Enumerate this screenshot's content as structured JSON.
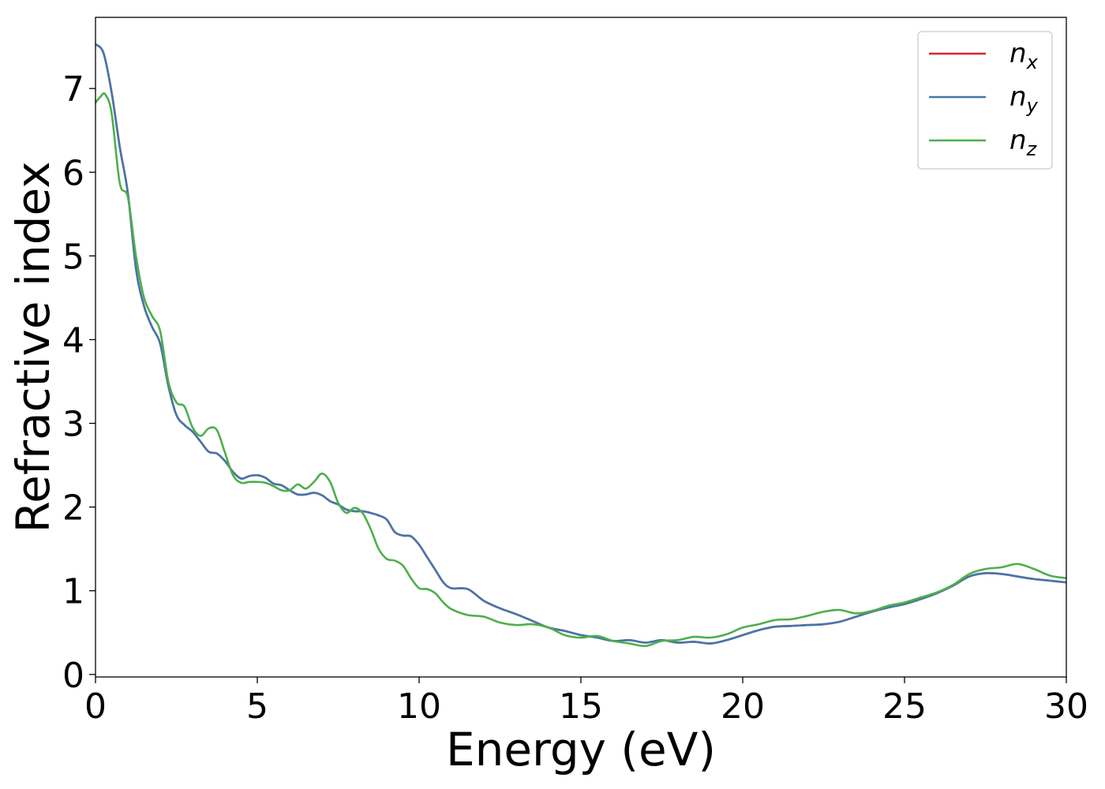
{
  "chart_data": {
    "type": "line",
    "xlabel": "Energy (eV)",
    "ylabel": "Refractive index",
    "xlim": [
      0,
      30
    ],
    "ylim": [
      -0.03,
      7.85
    ],
    "xticks": [
      0,
      5,
      10,
      15,
      20,
      25,
      30
    ],
    "xtick_labels": [
      "0",
      "5",
      "10",
      "15",
      "20",
      "25",
      "30"
    ],
    "yticks": [
      0,
      1,
      2,
      3,
      4,
      5,
      6,
      7
    ],
    "ytick_labels": [
      "0",
      "1",
      "2",
      "3",
      "4",
      "5",
      "6",
      "7"
    ],
    "grid": false,
    "legend_position": "top-right",
    "series": [
      {
        "name": "n_x",
        "legend_base": "n",
        "legend_sub": "x",
        "color": "#d62728",
        "x": [
          0,
          0.25,
          0.5,
          0.75,
          1.0,
          1.25,
          1.5,
          1.75,
          2.0,
          2.25,
          2.5,
          2.75,
          3.0,
          3.25,
          3.5,
          3.75,
          4.0,
          4.25,
          4.5,
          4.75,
          5.0,
          5.25,
          5.5,
          5.75,
          6.0,
          6.25,
          6.5,
          6.75,
          7.0,
          7.25,
          7.5,
          7.75,
          8.0,
          8.25,
          8.5,
          8.75,
          9.0,
          9.25,
          9.5,
          9.75,
          10.0,
          10.25,
          10.5,
          10.75,
          11.0,
          11.5,
          12.0,
          12.5,
          13.0,
          13.5,
          14.0,
          14.5,
          15.0,
          15.5,
          16.0,
          16.5,
          17.0,
          17.5,
          18.0,
          18.5,
          19.0,
          19.5,
          20.0,
          20.5,
          21.0,
          21.5,
          22.0,
          22.5,
          23.0,
          23.5,
          24.0,
          24.5,
          25.0,
          25.5,
          26.0,
          26.5,
          27.0,
          27.5,
          28.0,
          28.5,
          29.0,
          29.5,
          30.0
        ],
        "y": [
          7.53,
          7.42,
          6.95,
          6.3,
          5.75,
          4.85,
          4.4,
          4.15,
          3.95,
          3.45,
          3.1,
          2.98,
          2.9,
          2.78,
          2.66,
          2.64,
          2.55,
          2.42,
          2.34,
          2.37,
          2.38,
          2.35,
          2.28,
          2.26,
          2.2,
          2.15,
          2.15,
          2.17,
          2.14,
          2.07,
          2.03,
          1.97,
          1.95,
          1.95,
          1.93,
          1.9,
          1.85,
          1.7,
          1.66,
          1.65,
          1.55,
          1.4,
          1.25,
          1.1,
          1.03,
          1.02,
          0.88,
          0.79,
          0.72,
          0.64,
          0.56,
          0.52,
          0.47,
          0.44,
          0.4,
          0.41,
          0.38,
          0.41,
          0.38,
          0.39,
          0.37,
          0.41,
          0.47,
          0.53,
          0.57,
          0.58,
          0.59,
          0.6,
          0.63,
          0.69,
          0.75,
          0.8,
          0.84,
          0.9,
          0.97,
          1.06,
          1.17,
          1.21,
          1.2,
          1.17,
          1.14,
          1.12,
          1.1
        ]
      },
      {
        "name": "n_y",
        "legend_base": "n",
        "legend_sub": "y",
        "color": "#4477aa",
        "x": [
          0,
          0.25,
          0.5,
          0.75,
          1.0,
          1.25,
          1.5,
          1.75,
          2.0,
          2.25,
          2.5,
          2.75,
          3.0,
          3.25,
          3.5,
          3.75,
          4.0,
          4.25,
          4.5,
          4.75,
          5.0,
          5.25,
          5.5,
          5.75,
          6.0,
          6.25,
          6.5,
          6.75,
          7.0,
          7.25,
          7.5,
          7.75,
          8.0,
          8.25,
          8.5,
          8.75,
          9.0,
          9.25,
          9.5,
          9.75,
          10.0,
          10.25,
          10.5,
          10.75,
          11.0,
          11.5,
          12.0,
          12.5,
          13.0,
          13.5,
          14.0,
          14.5,
          15.0,
          15.5,
          16.0,
          16.5,
          17.0,
          17.5,
          18.0,
          18.5,
          19.0,
          19.5,
          20.0,
          20.5,
          21.0,
          21.5,
          22.0,
          22.5,
          23.0,
          23.5,
          24.0,
          24.5,
          25.0,
          25.5,
          26.0,
          26.5,
          27.0,
          27.5,
          28.0,
          28.5,
          29.0,
          29.5,
          30.0
        ],
        "y": [
          7.53,
          7.42,
          6.95,
          6.3,
          5.75,
          4.85,
          4.4,
          4.15,
          3.95,
          3.45,
          3.1,
          2.98,
          2.9,
          2.78,
          2.66,
          2.64,
          2.55,
          2.42,
          2.34,
          2.37,
          2.38,
          2.35,
          2.28,
          2.26,
          2.2,
          2.15,
          2.15,
          2.17,
          2.14,
          2.07,
          2.03,
          1.97,
          1.95,
          1.95,
          1.93,
          1.9,
          1.85,
          1.7,
          1.66,
          1.65,
          1.55,
          1.4,
          1.25,
          1.1,
          1.03,
          1.02,
          0.88,
          0.79,
          0.72,
          0.64,
          0.56,
          0.52,
          0.47,
          0.44,
          0.4,
          0.41,
          0.38,
          0.41,
          0.38,
          0.39,
          0.37,
          0.41,
          0.47,
          0.53,
          0.57,
          0.58,
          0.59,
          0.6,
          0.63,
          0.69,
          0.75,
          0.8,
          0.84,
          0.9,
          0.97,
          1.06,
          1.17,
          1.21,
          1.2,
          1.17,
          1.14,
          1.12,
          1.1
        ]
      },
      {
        "name": "n_z",
        "legend_base": "n",
        "legend_sub": "z",
        "color": "#4daf4a",
        "x": [
          0,
          0.15,
          0.3,
          0.5,
          0.75,
          1.0,
          1.25,
          1.5,
          1.75,
          2.0,
          2.25,
          2.5,
          2.75,
          3.0,
          3.25,
          3.5,
          3.75,
          4.0,
          4.25,
          4.5,
          4.75,
          5.0,
          5.25,
          5.5,
          5.75,
          6.0,
          6.25,
          6.5,
          6.75,
          7.0,
          7.25,
          7.5,
          7.75,
          8.0,
          8.25,
          8.5,
          8.75,
          9.0,
          9.25,
          9.5,
          9.75,
          10.0,
          10.25,
          10.5,
          10.75,
          11.0,
          11.5,
          12.0,
          12.5,
          13.0,
          13.5,
          14.0,
          14.5,
          15.0,
          15.5,
          16.0,
          16.5,
          17.0,
          17.5,
          18.0,
          18.5,
          19.0,
          19.5,
          20.0,
          20.5,
          21.0,
          21.5,
          22.0,
          22.5,
          23.0,
          23.5,
          24.0,
          24.5,
          25.0,
          25.5,
          26.0,
          26.5,
          27.0,
          27.5,
          28.0,
          28.5,
          29.0,
          29.5,
          30.0
        ],
        "y": [
          6.83,
          6.9,
          6.93,
          6.7,
          5.87,
          5.7,
          5.0,
          4.5,
          4.28,
          4.1,
          3.5,
          3.25,
          3.2,
          2.95,
          2.85,
          2.94,
          2.92,
          2.65,
          2.38,
          2.29,
          2.3,
          2.3,
          2.29,
          2.25,
          2.2,
          2.2,
          2.27,
          2.22,
          2.3,
          2.4,
          2.3,
          2.05,
          1.93,
          1.99,
          1.93,
          1.74,
          1.5,
          1.38,
          1.36,
          1.3,
          1.15,
          1.03,
          1.02,
          0.97,
          0.86,
          0.78,
          0.71,
          0.69,
          0.62,
          0.59,
          0.6,
          0.56,
          0.47,
          0.44,
          0.46,
          0.4,
          0.37,
          0.34,
          0.4,
          0.41,
          0.45,
          0.44,
          0.48,
          0.56,
          0.6,
          0.65,
          0.66,
          0.7,
          0.75,
          0.77,
          0.73,
          0.76,
          0.82,
          0.86,
          0.92,
          0.98,
          1.07,
          1.2,
          1.26,
          1.28,
          1.32,
          1.26,
          1.18,
          1.15
        ]
      }
    ]
  }
}
